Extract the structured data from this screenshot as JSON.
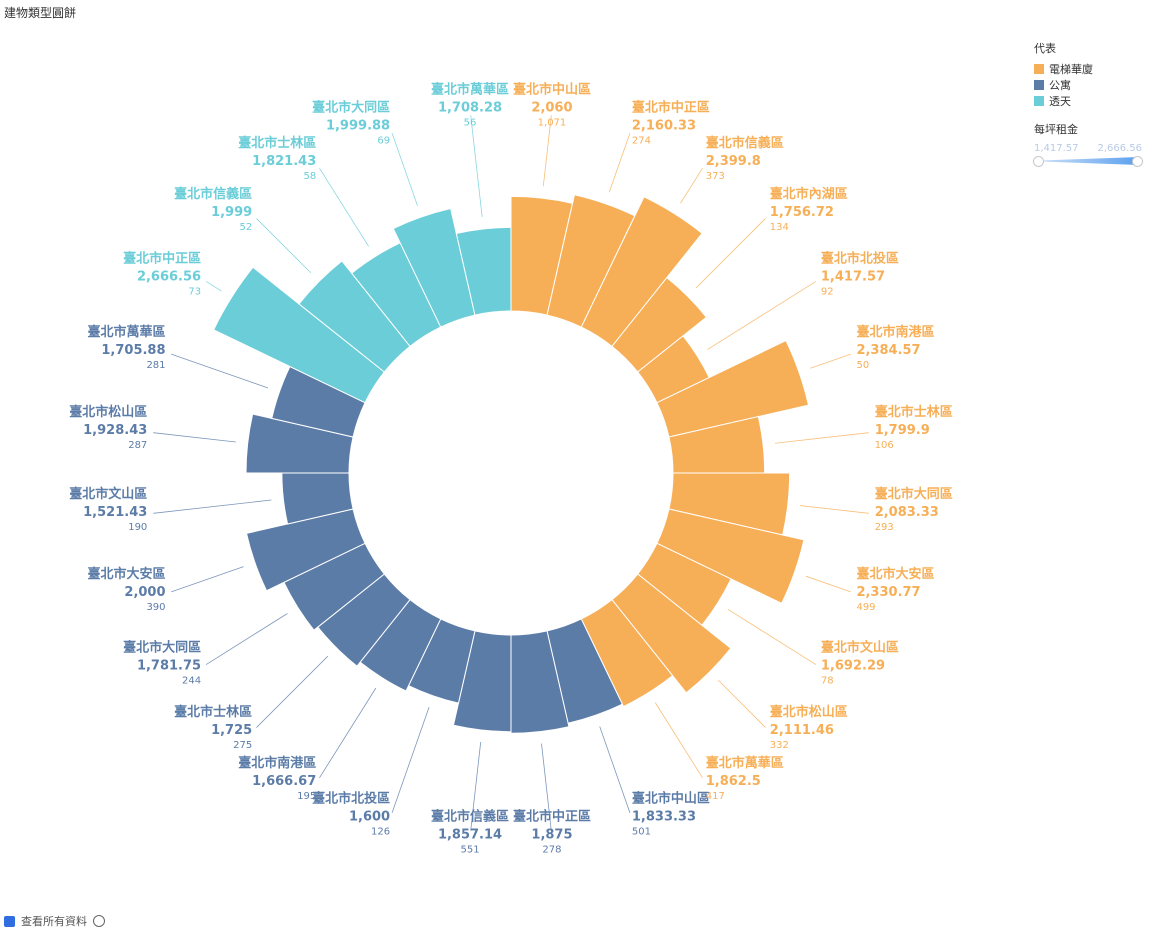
{
  "title": "建物類型圓餅",
  "legend": {
    "title": "代表",
    "items": [
      {
        "label": "電梯華廈",
        "color": "#F7AF57"
      },
      {
        "label": "公寓",
        "color": "#5C7CA8"
      },
      {
        "label": "透天",
        "color": "#6ACDD8"
      }
    ]
  },
  "size_legend": {
    "title": "每坪租金",
    "min": "1,417.57",
    "max": "2,666.56"
  },
  "footer": {
    "label": "查看所有資料"
  },
  "chart_data": {
    "type": "polar-bar",
    "title": "建物類型圓餅",
    "series": [
      {
        "name": "電梯華廈",
        "color": "#F7AF57",
        "points": [
          {
            "district": "臺北市中山區",
            "value": 2060,
            "value_label": "2,060",
            "count": "1,071"
          },
          {
            "district": "臺北市中正區",
            "value": 2160.33,
            "value_label": "2,160.33",
            "count": "274"
          },
          {
            "district": "臺北市信義區",
            "value": 2399.8,
            "value_label": "2,399.8",
            "count": "373"
          },
          {
            "district": "臺北市內湖區",
            "value": 1756.72,
            "value_label": "1,756.72",
            "count": "134"
          },
          {
            "district": "臺北市北投區",
            "value": 1417.57,
            "value_label": "1,417.57",
            "count": "92"
          },
          {
            "district": "臺北市南港區",
            "value": 2384.57,
            "value_label": "2,384.57",
            "count": "50"
          },
          {
            "district": "臺北市士林區",
            "value": 1799.9,
            "value_label": "1,799.9",
            "count": "106"
          },
          {
            "district": "臺北市大同區",
            "value": 2083.33,
            "value_label": "2,083.33",
            "count": "293"
          },
          {
            "district": "臺北市大安區",
            "value": 2330.77,
            "value_label": "2,330.77",
            "count": "499"
          },
          {
            "district": "臺北市文山區",
            "value": 1692.29,
            "value_label": "1,692.29",
            "count": "78"
          },
          {
            "district": "臺北市松山區",
            "value": 2111.46,
            "value_label": "2,111.46",
            "count": "332"
          },
          {
            "district": "臺北市萬華區",
            "value": 1862.5,
            "value_label": "1,862.5",
            "count": "417"
          }
        ]
      },
      {
        "name": "公寓",
        "color": "#5C7CA8",
        "points": [
          {
            "district": "臺北市中山區",
            "value": 1833.33,
            "value_label": "1,833.33",
            "count": "501"
          },
          {
            "district": "臺北市中正區",
            "value": 1875,
            "value_label": "1,875",
            "count": "278"
          },
          {
            "district": "臺北市信義區",
            "value": 1857.14,
            "value_label": "1,857.14",
            "count": "551"
          },
          {
            "district": "臺北市北投區",
            "value": 1600,
            "value_label": "1,600",
            "count": "126"
          },
          {
            "district": "臺北市南港區",
            "value": 1666.67,
            "value_label": "1,666.67",
            "count": "195"
          },
          {
            "district": "臺北市士林區",
            "value": 1725,
            "value_label": "1,725",
            "count": "275"
          },
          {
            "district": "臺北市大同區",
            "value": 1781.75,
            "value_label": "1,781.75",
            "count": "244"
          },
          {
            "district": "臺北市大安區",
            "value": 2000,
            "value_label": "2,000",
            "count": "390"
          },
          {
            "district": "臺北市文山區",
            "value": 1521.43,
            "value_label": "1,521.43",
            "count": "190"
          },
          {
            "district": "臺北市松山區",
            "value": 1928.43,
            "value_label": "1,928.43",
            "count": "287"
          },
          {
            "district": "臺北市萬華區",
            "value": 1705.88,
            "value_label": "1,705.88",
            "count": "281"
          }
        ]
      },
      {
        "name": "透天",
        "color": "#6ACDD8",
        "points": [
          {
            "district": "臺北市中正區",
            "value": 2666.56,
            "value_label": "2,666.56",
            "count": "73"
          },
          {
            "district": "臺北市信義區",
            "value": 1999,
            "value_label": "1,999",
            "count": "52"
          },
          {
            "district": "臺北市士林區",
            "value": 1821.43,
            "value_label": "1,821.43",
            "count": "58"
          },
          {
            "district": "臺北市大同區",
            "value": 1999.88,
            "value_label": "1,999.88",
            "count": "69"
          },
          {
            "district": "臺北市萬華區",
            "value": 1708.28,
            "value_label": "1,708.28",
            "count": "56"
          }
        ]
      }
    ]
  }
}
